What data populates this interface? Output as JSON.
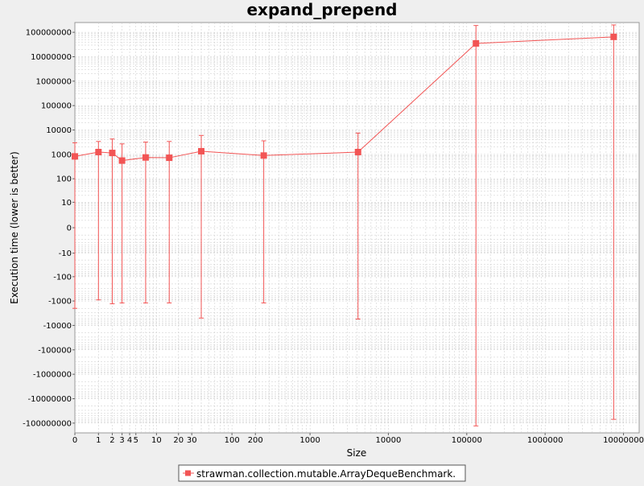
{
  "chart_data": {
    "type": "line",
    "title": "expand_prepend",
    "xlabel": "Size",
    "ylabel": "Execution time (lower is better)",
    "x_scale": "symlog",
    "y_scale": "symlog",
    "grid": true,
    "legend_position": "bottom",
    "colors": {
      "series": "#f25454",
      "grid": "#c8c8c8",
      "plot_bg": "#ffffff",
      "page_bg": "#efefef"
    },
    "x_ticks": [
      {
        "value": 0,
        "label": "0"
      },
      {
        "value": 1,
        "label": "1"
      },
      {
        "value": 2,
        "label": "2"
      },
      {
        "value": 3,
        "label": "3"
      },
      {
        "value": 4,
        "label": "4"
      },
      {
        "value": 5,
        "label": "5"
      },
      {
        "value": 10,
        "label": "10"
      },
      {
        "value": 20,
        "label": "20"
      },
      {
        "value": 30,
        "label": "30"
      },
      {
        "value": 100,
        "label": "100"
      },
      {
        "value": 200,
        "label": "200"
      },
      {
        "value": 1000,
        "label": "1000"
      },
      {
        "value": 10000,
        "label": "10000"
      },
      {
        "value": 100000,
        "label": "100000"
      },
      {
        "value": 1000000,
        "label": "1000000"
      },
      {
        "value": 10000000,
        "label": "10000000"
      }
    ],
    "y_ticks": [
      {
        "value": 100000000,
        "label": "100000000"
      },
      {
        "value": 10000000,
        "label": "10000000"
      },
      {
        "value": 1000000,
        "label": "1000000"
      },
      {
        "value": 100000,
        "label": "100000"
      },
      {
        "value": 10000,
        "label": "10000"
      },
      {
        "value": 1000,
        "label": "1000"
      },
      {
        "value": 100,
        "label": "100"
      },
      {
        "value": 10,
        "label": "10"
      },
      {
        "value": 0,
        "label": "0"
      },
      {
        "value": -10,
        "label": "-10"
      },
      {
        "value": -100,
        "label": "-100"
      },
      {
        "value": -1000,
        "label": "-1000"
      },
      {
        "value": -10000,
        "label": "-10000"
      },
      {
        "value": -100000,
        "label": "-100000"
      },
      {
        "value": -1000000,
        "label": "-1000000"
      },
      {
        "value": -10000000,
        "label": "-10000000"
      },
      {
        "value": -100000000,
        "label": "-100000000"
      }
    ],
    "series": [
      {
        "name": "strawman.collection.mutable.ArrayDequeBenchmark.",
        "points": [
          {
            "x": 0,
            "y": 830,
            "low": -2000,
            "high": 3000
          },
          {
            "x": 1,
            "y": 1250,
            "low": -900,
            "high": 3400
          },
          {
            "x": 2,
            "y": 1150,
            "low": -1300,
            "high": 4300
          },
          {
            "x": 3,
            "y": 560,
            "low": -1200,
            "high": 2700
          },
          {
            "x": 7,
            "y": 750,
            "low": -1200,
            "high": 3200
          },
          {
            "x": 15,
            "y": 730,
            "low": -1200,
            "high": 3400
          },
          {
            "x": 40,
            "y": 1350,
            "low": -5000,
            "high": 6000
          },
          {
            "x": 256,
            "y": 900,
            "low": -1200,
            "high": 3600
          },
          {
            "x": 4100,
            "y": 1250,
            "low": -5500,
            "high": 7500
          },
          {
            "x": 131072,
            "y": 35000000,
            "low": -130000000,
            "high": 190000000
          },
          {
            "x": 7500000,
            "y": 65000000,
            "low": -70000000,
            "high": 200000000
          }
        ]
      }
    ]
  }
}
